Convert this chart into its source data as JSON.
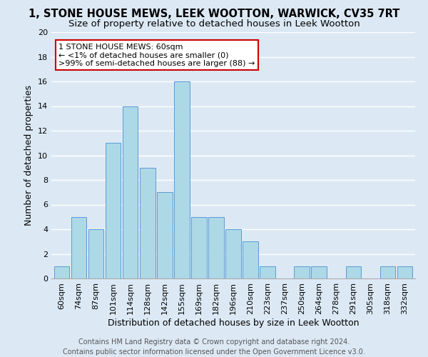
{
  "title": "1, STONE HOUSE MEWS, LEEK WOOTTON, WARWICK, CV35 7RT",
  "subtitle": "Size of property relative to detached houses in Leek Wootton",
  "xlabel": "Distribution of detached houses by size in Leek Wootton",
  "ylabel": "Number of detached properties",
  "categories": [
    "60sqm",
    "74sqm",
    "87sqm",
    "101sqm",
    "114sqm",
    "128sqm",
    "142sqm",
    "155sqm",
    "169sqm",
    "182sqm",
    "196sqm",
    "210sqm",
    "223sqm",
    "237sqm",
    "250sqm",
    "264sqm",
    "278sqm",
    "291sqm",
    "305sqm",
    "318sqm",
    "332sqm"
  ],
  "values": [
    1,
    5,
    4,
    11,
    14,
    9,
    7,
    16,
    5,
    5,
    4,
    3,
    1,
    0,
    1,
    1,
    0,
    1,
    0,
    1,
    1
  ],
  "bar_color": "#add8e6",
  "bar_edge_color": "#5b9bd5",
  "annotation_box_color": "#ffffff",
  "annotation_box_edge": "#cc0000",
  "annotation_title": "1 STONE HOUSE MEWS: 60sqm",
  "annotation_line1": "← <1% of detached houses are smaller (0)",
  "annotation_line2": ">99% of semi-detached houses are larger (88) →",
  "ylim": [
    0,
    20
  ],
  "yticks": [
    0,
    2,
    4,
    6,
    8,
    10,
    12,
    14,
    16,
    18,
    20
  ],
  "footer1": "Contains HM Land Registry data © Crown copyright and database right 2024.",
  "footer2": "Contains public sector information licensed under the Open Government Licence v3.0.",
  "bg_color": "#dce9f5",
  "plot_bg_color": "#dce9f5",
  "grid_color": "#ffffff",
  "title_fontsize": 10.5,
  "subtitle_fontsize": 9.5,
  "axis_label_fontsize": 9,
  "tick_fontsize": 8,
  "annotation_fontsize": 8,
  "footer_fontsize": 7
}
